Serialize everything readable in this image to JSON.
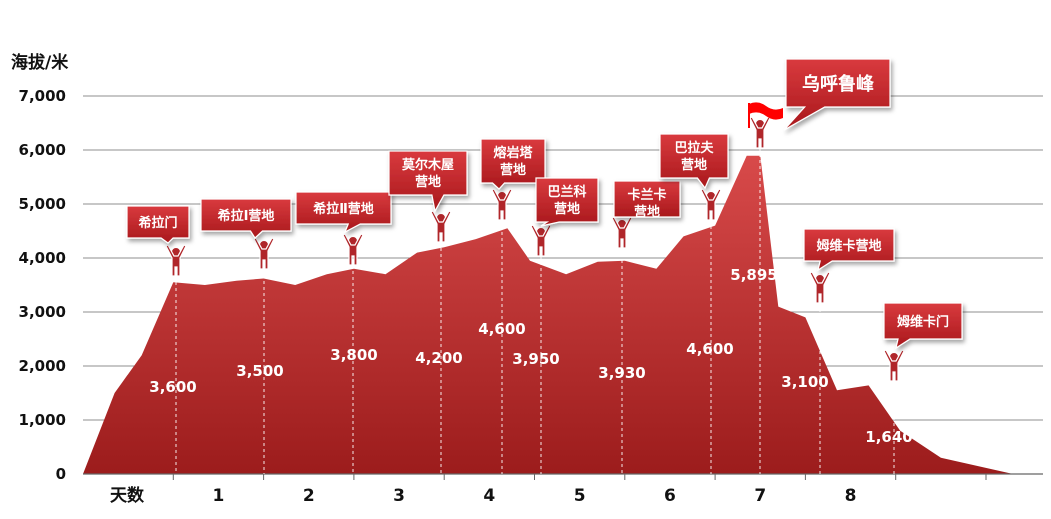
{
  "chart_data": {
    "type": "area",
    "ylabel": "海拔/米",
    "xlabel": "天数",
    "ylim": [
      0,
      7000
    ],
    "yticks": [
      "0",
      "1,000",
      "2,000",
      "3,000",
      "4,000",
      "5,000",
      "6,000",
      "7,000"
    ],
    "ytick_values": [
      0,
      1000,
      2000,
      3000,
      4000,
      5000,
      6000,
      7000
    ],
    "day_labels": [
      "1",
      "2",
      "3",
      "4",
      "5",
      "6",
      "7",
      "8"
    ],
    "grid": "horizontal",
    "colors": {
      "area_top": "#d84a4a",
      "area_bottom": "#9c1c1c",
      "callout": "#c0282c",
      "flag": "#ff0000"
    },
    "profile": [
      [
        0,
        0
      ],
      [
        0.35,
        1500
      ],
      [
        0.65,
        2200
      ],
      [
        1.0,
        3550
      ],
      [
        1.35,
        3500
      ],
      [
        1.7,
        3580
      ],
      [
        2.0,
        3620
      ],
      [
        2.35,
        3500
      ],
      [
        2.7,
        3700
      ],
      [
        3.0,
        3800
      ],
      [
        3.35,
        3700
      ],
      [
        3.7,
        4100
      ],
      [
        4.0,
        4200
      ],
      [
        4.35,
        4350
      ],
      [
        4.7,
        4550
      ],
      [
        4.95,
        3950
      ],
      [
        5.35,
        3700
      ],
      [
        5.7,
        3930
      ],
      [
        6.0,
        3950
      ],
      [
        6.35,
        3800
      ],
      [
        6.65,
        4400
      ],
      [
        7.0,
        4600
      ],
      [
        7.35,
        5895
      ],
      [
        7.5,
        5895
      ],
      [
        7.7,
        3100
      ],
      [
        8.0,
        2900
      ],
      [
        8.35,
        1550
      ],
      [
        8.7,
        1640
      ],
      [
        9.05,
        800
      ],
      [
        9.5,
        300
      ],
      [
        10.3,
        0
      ]
    ],
    "camps": [
      {
        "name": "希拉门",
        "x": 1.0,
        "value": 3600,
        "value_label": "3,600"
      },
      {
        "name": "希拉I营地",
        "x": 2.0,
        "value": 3500,
        "value_label": "3,500"
      },
      {
        "name": "希拉Ⅱ营地",
        "x": 3.0,
        "value": 3800,
        "value_label": "3,800"
      },
      {
        "name": "莫尔木屋营地",
        "x": 4.0,
        "value": 4200,
        "value_label": "4,200"
      },
      {
        "name": "熔岩塔营地",
        "x": 5.0,
        "value": 4600,
        "value_label": "4,600"
      },
      {
        "name": "巴兰科营地",
        "x": 5.35,
        "value": 3950,
        "value_label": "3,950"
      },
      {
        "name": "卡兰卡营地",
        "x": 6.0,
        "value": 3930,
        "value_label": "3,930"
      },
      {
        "name": "巴拉夫营地",
        "x": 7.0,
        "value": 4600,
        "value_label": "4,600"
      },
      {
        "name": "乌呼鲁峰",
        "x": 7.5,
        "value": 5895,
        "value_label": "5,895"
      },
      {
        "name": "姆维卡营地",
        "x": 8.0,
        "value": 3100,
        "value_label": "3,100"
      },
      {
        "name": "姆维卡门",
        "x": 9.0,
        "value": 1640,
        "value_label": "1,640"
      }
    ]
  }
}
